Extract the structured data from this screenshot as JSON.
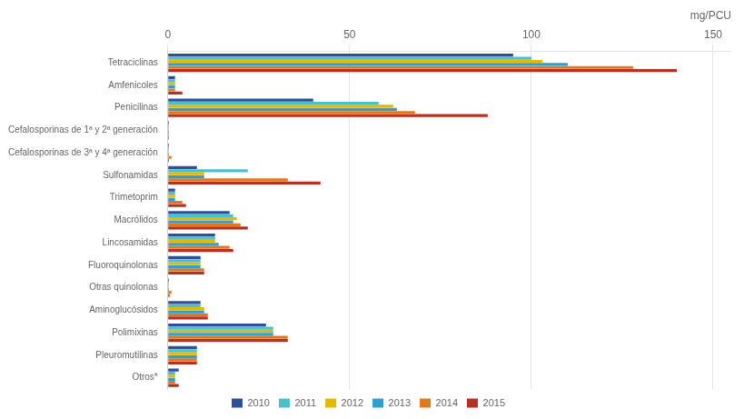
{
  "chart_data": {
    "type": "bar",
    "orientation": "horizontal",
    "categories": [
      "Tetraciclinas",
      "Amfenicoles",
      "Penicilinas",
      "Cefalosporinas de 1ª y 2ª generación",
      "Cefalosporinas de 3ª y 4ª generación",
      "Sulfonamidas",
      "Trimetoprim",
      "Macrólidos",
      "Lincosamidas",
      "Fluoroquinolonas",
      "Otras quinolonas",
      "Aminoglucósidos",
      "Polimixinas",
      "Pleuromutilinas",
      "Otros*"
    ],
    "series": [
      {
        "name": "2010",
        "color": "#2e4f9c",
        "values": [
          95,
          2,
          40,
          0.3,
          0.3,
          8,
          2,
          17,
          13,
          9,
          0.3,
          9,
          27,
          8,
          3
        ]
      },
      {
        "name": "2011",
        "color": "#4bbfca",
        "values": [
          100,
          2,
          58,
          0.3,
          0.3,
          22,
          2,
          18,
          13,
          9,
          0.3,
          9,
          29,
          8,
          2
        ]
      },
      {
        "name": "2012",
        "color": "#e8b800",
        "values": [
          103,
          2,
          62,
          0.3,
          0.3,
          10,
          2,
          19,
          13,
          9,
          0.3,
          10,
          29,
          8,
          2
        ]
      },
      {
        "name": "2013",
        "color": "#2ea0d0",
        "values": [
          110,
          2,
          63,
          0.3,
          0.3,
          10,
          2,
          18,
          14,
          9,
          0.3,
          10,
          29,
          8,
          2
        ]
      },
      {
        "name": "2014",
        "color": "#e07820",
        "values": [
          128,
          2,
          68,
          0.3,
          1.0,
          33,
          4,
          20,
          17,
          10,
          1.0,
          11,
          33,
          8,
          2
        ]
      },
      {
        "name": "2015",
        "color": "#b83020",
        "values": [
          140,
          4,
          88,
          0.3,
          0.3,
          42,
          5,
          22,
          18,
          10,
          0.5,
          11,
          33,
          8,
          3
        ]
      }
    ],
    "xlabel": "mg/PCU",
    "xlim": [
      0,
      155
    ],
    "xticks": [
      0,
      50,
      100,
      150
    ],
    "grid": true,
    "legend": "bottom"
  }
}
